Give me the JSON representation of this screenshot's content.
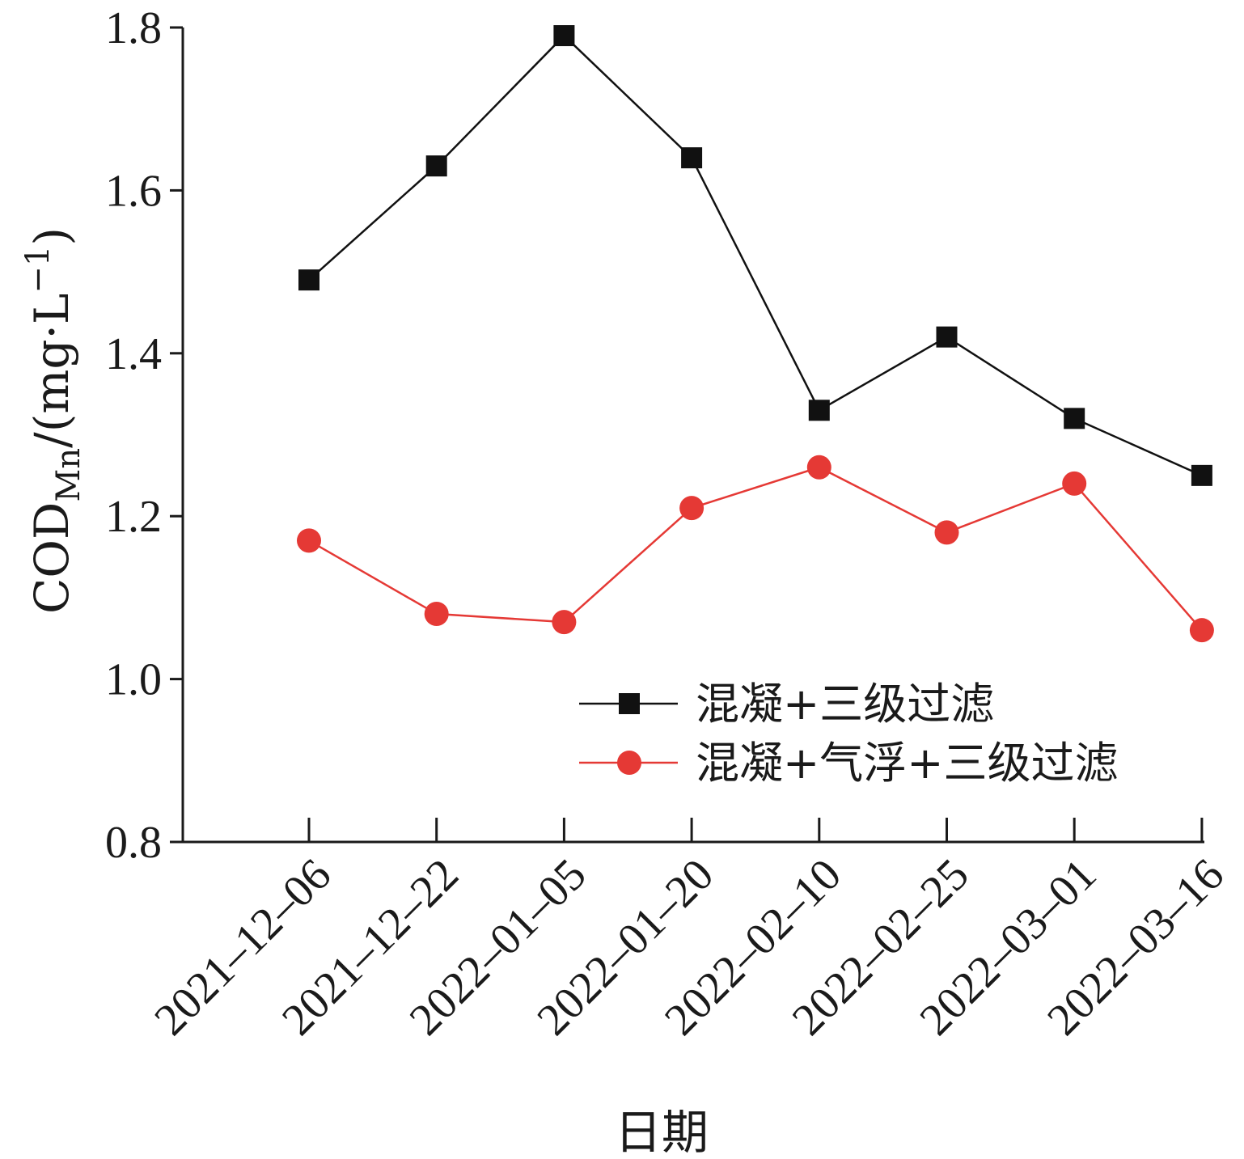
{
  "chart_data": {
    "type": "line",
    "title": "",
    "xlabel": "日期",
    "ylabel": {
      "prefix": "COD",
      "subscript": "Mn",
      "unit_open": "/(mg·L",
      "superscript": "−1",
      "unit_close": ")"
    },
    "ylim": [
      0.8,
      1.8
    ],
    "yticks": [
      0.8,
      1.0,
      1.2,
      1.4,
      1.6,
      1.8
    ],
    "ytick_labels": [
      "0.8",
      "1.0",
      "1.2",
      "1.4",
      "1.6",
      "1.8"
    ],
    "categories": [
      "2021–12–06",
      "2021–12–22",
      "2022–01–05",
      "2022–01–20",
      "2022–02–10",
      "2022–02–25",
      "2022–03–01",
      "2022–03–16"
    ],
    "grid": false,
    "legend_position": "lower-right",
    "series": [
      {
        "name": "混凝+三级过滤",
        "marker": "square",
        "color": "#111111",
        "values": [
          1.49,
          1.63,
          1.79,
          1.64,
          1.33,
          1.42,
          1.32,
          1.25
        ]
      },
      {
        "name": "混凝+气浮+三级过滤",
        "marker": "circle",
        "color": "#e53935",
        "values": [
          1.17,
          1.08,
          1.07,
          1.21,
          1.26,
          1.18,
          1.24,
          1.06
        ]
      }
    ]
  }
}
